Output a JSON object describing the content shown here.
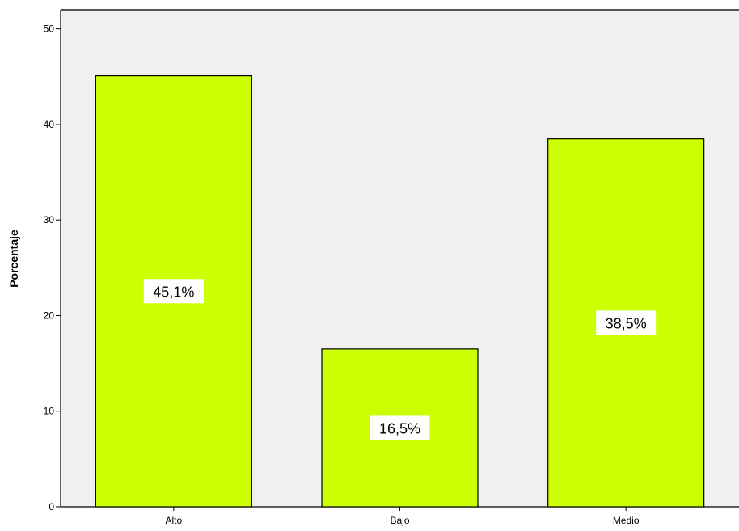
{
  "chart_data": {
    "type": "bar",
    "categories": [
      "Alto",
      "Bajo",
      "Medio"
    ],
    "values": [
      45.1,
      16.5,
      38.5
    ],
    "data_labels": [
      "45,1%",
      "16,5%",
      "38,5%"
    ],
    "ylabel": "Porcentaje",
    "xlabel": "",
    "ylim": [
      0,
      52
    ],
    "yticks": [
      0,
      10,
      20,
      30,
      40,
      50
    ],
    "grid": false,
    "legend": "none",
    "colors": {
      "bar_fill": "#ccff00",
      "bar_stroke": "#000000",
      "plot_background": "#f0f0f0",
      "label_background": "#ffffff"
    }
  }
}
